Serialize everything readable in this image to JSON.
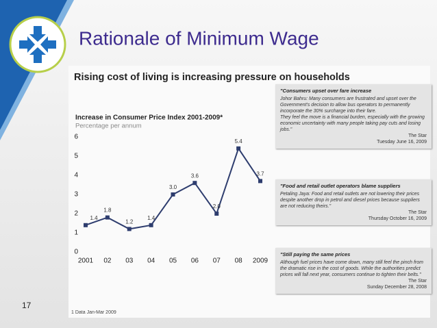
{
  "slide": {
    "title": "Rationale of Minimum Wage",
    "page_number": "17"
  },
  "panel": {
    "heading": "Rising cost of living is increasing pressure on households",
    "footnote": "1 Data Jan-Mar 2009"
  },
  "chart_data": {
    "type": "line",
    "title": "Increase in Consumer Price Index 2001-2009*",
    "subtitle": "Percentage per annum",
    "categories": [
      "2001",
      "02",
      "03",
      "04",
      "05",
      "06",
      "07",
      "08",
      "2009"
    ],
    "values": [
      1.4,
      1.8,
      1.2,
      1.4,
      3.0,
      3.6,
      2.0,
      5.4,
      3.7
    ],
    "value_labels": [
      "1.4",
      "1.8",
      "1.2",
      "1.4",
      "3.0",
      "3.6",
      "2.0",
      "5.4",
      "3.7"
    ],
    "color": "#2e3d6e",
    "ylim": [
      0,
      6
    ],
    "yticks": [
      0,
      1,
      2,
      3,
      4,
      5,
      6
    ]
  },
  "clippings": [
    {
      "headline": "\"Consumers upset over fare increase",
      "paragraphs": [
        "Johor Bahru: Many consumers are frustrated and upset over the Government's decision to allow bus operators to permanently incorporate the 30% surcharge into their fare.",
        "They feel the move is a financial burden, especially with the growing economic uncertainty with many people taking pay cuts and losing jobs.\""
      ],
      "source": "The Star",
      "date": "Tuesday June 16, 2009"
    },
    {
      "headline": "\"Food and retail outlet operators blame suppliers",
      "paragraphs": [
        "Petaling Jaya: Food and retail outlets are not lowering their prices despite another drop in petrol and diesel prices because suppliers are not reducing theirs.\""
      ],
      "source": "The Star",
      "date": "Thursday October 16, 2009"
    },
    {
      "headline": "\"Still paying the same prices",
      "paragraphs": [
        "Although fuel prices have come down, many still feel the pinch from the dramatic rise in the cost of goods. While the authorities predict prices will fall next year, consumers continue to tighten their belts.\""
      ],
      "source": "The Star",
      "date": "Sunday December 28, 2008"
    }
  ]
}
